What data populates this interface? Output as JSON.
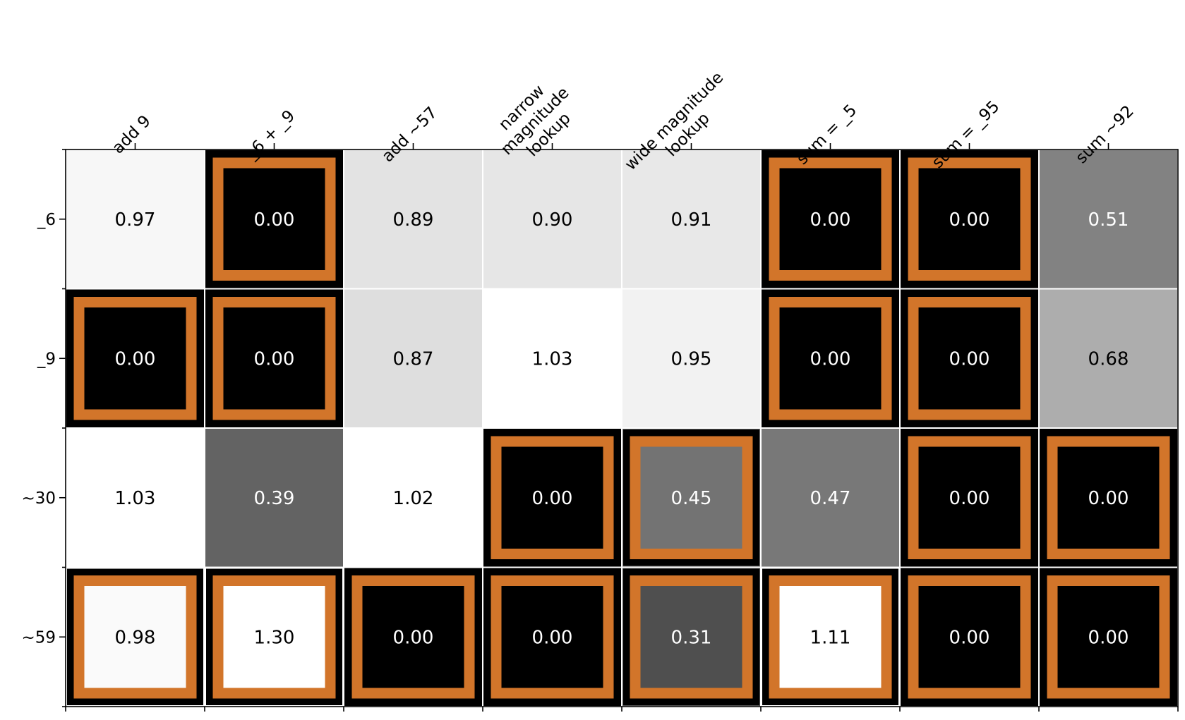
{
  "chart_data": {
    "type": "heatmap",
    "title": "",
    "xlabel": "",
    "ylabel": "",
    "columns": [
      [
        "add 9"
      ],
      [
        "_6 + _9"
      ],
      [
        "add ~57"
      ],
      [
        "narrow",
        "magnitude",
        "lookup"
      ],
      [
        "wide magnitude",
        "lookup"
      ],
      [
        "sum = _5"
      ],
      [
        "sum = _95"
      ],
      [
        "sum ~92"
      ]
    ],
    "rows": [
      "_6",
      "_9",
      "~30",
      "~59"
    ],
    "values": [
      [
        0.97,
        0.0,
        0.89,
        0.9,
        0.91,
        0.0,
        0.0,
        0.51
      ],
      [
        0.0,
        0.0,
        0.87,
        1.03,
        0.95,
        0.0,
        0.0,
        0.68
      ],
      [
        1.03,
        0.39,
        1.02,
        0.0,
        0.45,
        0.47,
        0.0,
        0.0
      ],
      [
        0.98,
        1.3,
        0.0,
        0.0,
        0.31,
        1.11,
        0.0,
        0.0
      ]
    ],
    "labels": [
      [
        "0.97",
        "0.00",
        "0.89",
        "0.90",
        "0.91",
        "0.00",
        "0.00",
        "0.51"
      ],
      [
        "0.00",
        "0.00",
        "0.87",
        "1.03",
        "0.95",
        "0.00",
        "0.00",
        "0.68"
      ],
      [
        "1.03",
        "0.39",
        "1.02",
        "0.00",
        "0.45",
        "0.47",
        "0.00",
        "0.00"
      ],
      [
        "0.98",
        "1.30",
        "0.00",
        "0.00",
        "0.31",
        "1.11",
        "0.00",
        "0.00"
      ]
    ],
    "highlighted": [
      [
        false,
        true,
        false,
        false,
        false,
        true,
        true,
        false
      ],
      [
        true,
        true,
        false,
        false,
        false,
        true,
        true,
        false
      ],
      [
        false,
        false,
        false,
        true,
        true,
        false,
        true,
        true
      ],
      [
        true,
        true,
        true,
        true,
        true,
        true,
        true,
        true
      ]
    ],
    "colormap": "grayscale",
    "color_range": [
      0,
      1
    ],
    "grid": false,
    "colors": {
      "highlight": "#d2752a",
      "cell_gap": "#ffffff",
      "background": "#ffffff"
    }
  }
}
